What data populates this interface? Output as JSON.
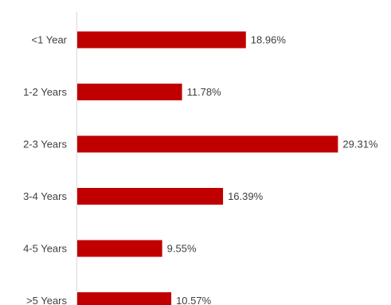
{
  "chart_data": {
    "type": "bar",
    "orientation": "horizontal",
    "categories": [
      "<1 Year",
      "1-2 Years",
      "2-3 Years",
      "3-4 Years",
      "4-5 Years",
      ">5 Years"
    ],
    "values": [
      18.96,
      11.78,
      29.31,
      16.39,
      9.55,
      10.57
    ],
    "value_labels": [
      "18.96%",
      "11.78%",
      "29.31%",
      "16.39%",
      "9.55%",
      "10.57%"
    ],
    "unit": "%",
    "xlim": [
      0,
      30
    ],
    "grid": false,
    "legend": "none",
    "bar_color": "#c00000"
  }
}
